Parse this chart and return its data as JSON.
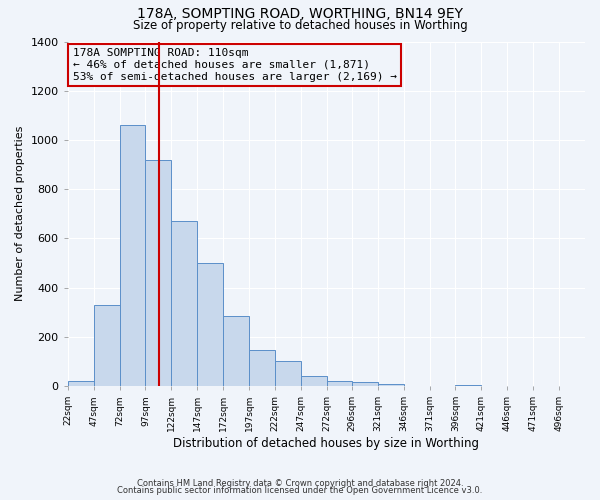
{
  "title": "178A, SOMPTING ROAD, WORTHING, BN14 9EY",
  "subtitle": "Size of property relative to detached houses in Worthing",
  "xlabel": "Distribution of detached houses by size in Worthing",
  "ylabel": "Number of detached properties",
  "bar_color": "#c8d8ec",
  "bar_edge_color": "#5b8fc9",
  "background_color": "#f0f4fa",
  "grid_color": "#ffffff",
  "vline_x": 110,
  "vline_color": "#cc0000",
  "annotation_text": "178A SOMPTING ROAD: 110sqm\n← 46% of detached houses are smaller (1,871)\n53% of semi-detached houses are larger (2,169) →",
  "annotation_box_edge": "#cc0000",
  "footnote1": "Contains HM Land Registry data © Crown copyright and database right 2024.",
  "footnote2": "Contains public sector information licensed under the Open Government Licence v3.0.",
  "bin_edges": [
    22,
    47,
    72,
    97,
    122,
    147,
    172,
    197,
    222,
    247,
    272,
    296,
    321,
    346,
    371,
    396,
    421,
    446,
    471,
    496,
    521
  ],
  "counts": [
    20,
    330,
    1060,
    920,
    670,
    500,
    285,
    148,
    102,
    40,
    20,
    18,
    10,
    0,
    0,
    5,
    0,
    0,
    0,
    0
  ],
  "ylim": [
    0,
    1400
  ],
  "yticks": [
    0,
    200,
    400,
    600,
    800,
    1000,
    1200,
    1400
  ]
}
